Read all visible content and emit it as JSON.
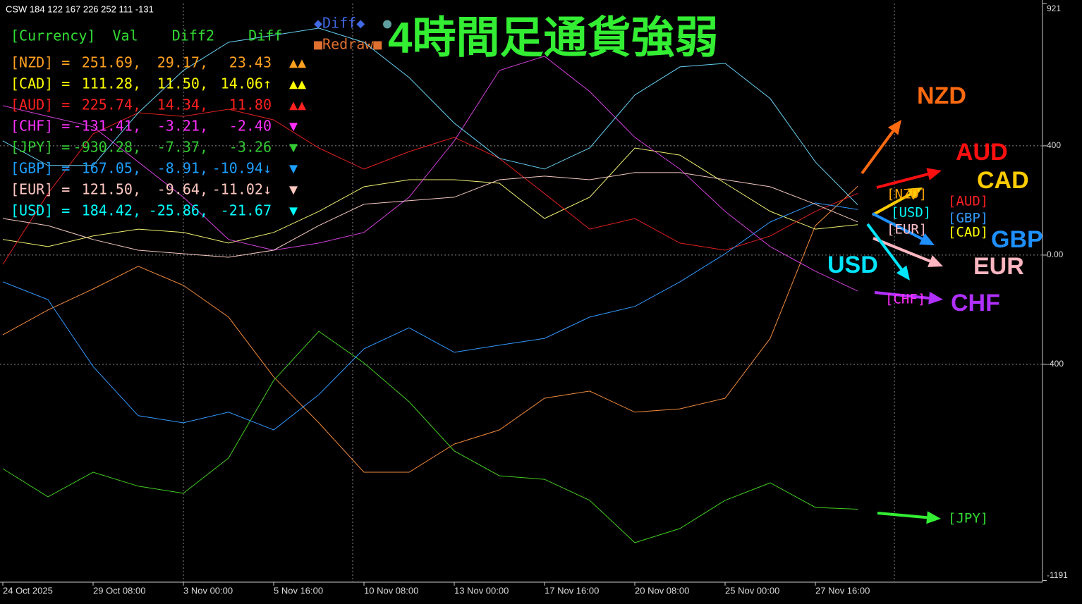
{
  "chart_data": {
    "type": "line",
    "indicator_name": "CSW 184 122 167 226 252 111 -131",
    "title": "4時間足通貨強弱",
    "buttons": {
      "diff": "◆Diff◆",
      "dot": "●",
      "redraw": "■Redraw■"
    },
    "x": [
      0,
      8,
      16,
      24,
      32,
      40,
      48,
      56,
      64,
      72,
      80,
      88,
      96,
      104,
      112,
      120,
      128,
      136,
      144,
      151.5
    ],
    "xlim": [
      0,
      184
    ],
    "xticks": [
      {
        "value": 0,
        "label": "24 Oct 2025"
      },
      {
        "value": 16,
        "label": "29 Oct 08:00"
      },
      {
        "value": 32,
        "label": "3 Nov 00:00"
      },
      {
        "value": 48,
        "label": "5 Nov 16:00"
      },
      {
        "value": 64,
        "label": "10 Nov 08:00"
      },
      {
        "value": 80,
        "label": "13 Nov 00:00"
      },
      {
        "value": 96,
        "label": "17 Nov 16:00"
      },
      {
        "value": 112,
        "label": "20 Nov 08:00"
      },
      {
        "value": 128,
        "label": "25 Nov 00:00"
      },
      {
        "value": 144,
        "label": "27 Nov 16:00"
      }
    ],
    "ylim": [
      -1191,
      921
    ],
    "yticks": [
      921,
      400,
      {
        "value": 0,
        "label": "0.00"
      },
      -400,
      -1191
    ],
    "grid_values": [
      400,
      0,
      -400
    ],
    "series": [
      {
        "name": "NZD",
        "color": "#f08a3c",
        "values": [
          -292,
          -201,
          -124,
          -41,
          -111,
          -227,
          -446,
          -614,
          -795,
          -795,
          -692,
          -640,
          -524,
          -498,
          -575,
          -563,
          -524,
          -305,
          108,
          251.69
        ]
      },
      {
        "name": "CAD",
        "color": "#f0f070",
        "values": [
          57,
          31,
          70,
          95,
          83,
          44,
          83,
          160,
          250,
          276,
          276,
          263,
          134,
          212,
          392,
          366,
          263,
          160,
          95,
          111.28
        ]
      },
      {
        "name": "AUD",
        "color": "#e02020",
        "values": [
          -34,
          225,
          444,
          521,
          508,
          534,
          495,
          392,
          315,
          379,
          431,
          354,
          225,
          95,
          134,
          44,
          18,
          70,
          160,
          225.74
        ]
      },
      {
        "name": "CHF",
        "color": "#d040d8",
        "values": [
          547,
          508,
          470,
          341,
          212,
          57,
          18,
          44,
          83,
          212,
          418,
          676,
          728,
          599,
          431,
          315,
          160,
          31,
          -59,
          -131.41
        ]
      },
      {
        "name": "JPY",
        "color": "#44cc22",
        "values": [
          -782,
          -885,
          -795,
          -846,
          -872,
          -743,
          -459,
          -279,
          -395,
          -537,
          -717,
          -808,
          -821,
          -898,
          -1053,
          -1001,
          -898,
          -834,
          -924,
          -930.28
        ]
      },
      {
        "name": "GBP",
        "color": "#3399ff",
        "values": [
          -98,
          -163,
          -408,
          -588,
          -614,
          -575,
          -640,
          -511,
          -343,
          -266,
          -356,
          -330,
          -305,
          -227,
          -188,
          -98,
          5,
          121,
          191,
          167.05
        ]
      },
      {
        "name": "EUR",
        "color": "#f4c8c0",
        "values": [
          134,
          108,
          57,
          18,
          5,
          -8,
          18,
          108,
          186,
          199,
          212,
          276,
          289,
          276,
          302,
          302,
          276,
          250,
          186,
          121.5
        ]
      },
      {
        "name": "USD",
        "color": "#66d0f0",
        "values": [
          418,
          328,
          328,
          521,
          676,
          779,
          805,
          831,
          779,
          650,
          483,
          354,
          315,
          392,
          586,
          689,
          702,
          573,
          341,
          184.42
        ]
      }
    ],
    "panel": {
      "header": "[Currency]  Val    Diff2    Diff",
      "header_color": "#33dd33",
      "rows": [
        {
          "color": "#ffa020",
          "cells": [
            "[NZD] =",
            "251.69,",
            "29.17,",
            "23.43",
            "▲▲"
          ]
        },
        {
          "color": "#ffff00",
          "cells": [
            "[CAD] =",
            "111.28,",
            "11.50,",
            "14.06↑",
            "▲▲"
          ]
        },
        {
          "color": "#ff2020",
          "cells": [
            "[AUD] =",
            "225.74,",
            "14.34,",
            "11.80",
            "▲▲"
          ]
        },
        {
          "color": "#ff30ff",
          "cells": [
            "[CHF] =",
            "-131.41,",
            "-3.21,",
            "-2.40",
            "▼"
          ]
        },
        {
          "color": "#33cc33",
          "cells": [
            "[JPY] =",
            "-930.28,",
            "-7.37,",
            "-3.26",
            "▼"
          ]
        },
        {
          "color": "#1ea0ff",
          "cells": [
            "[GBP] =",
            "167.05,",
            "-8.91,",
            "-10.94↓",
            "▼"
          ]
        },
        {
          "color": "#ffc8c0",
          "cells": [
            "[EUR] =",
            "121.50,",
            "-9.64,",
            "-11.02↓",
            "▼"
          ]
        },
        {
          "color": "#00ffff",
          "cells": [
            "[USD] =",
            "184.42,",
            "-25.86,",
            "-21.67",
            "▼"
          ]
        }
      ]
    },
    "big_labels": [
      {
        "text": "NZD",
        "color": "#ff6a10"
      },
      {
        "text": "AUD",
        "color": "#ff1010"
      },
      {
        "text": "CAD",
        "color": "#ffcc00"
      },
      {
        "text": "GBP",
        "color": "#1e90ff"
      },
      {
        "text": "EUR",
        "color": "#ffb6c1"
      },
      {
        "text": "USD",
        "color": "#00e5ff"
      },
      {
        "text": "CHF",
        "color": "#b030ff"
      }
    ],
    "small_labels": [
      {
        "text": "[NZD]",
        "color": "#ffa500"
      },
      {
        "text": "[USD]",
        "color": "#00ffff"
      },
      {
        "text": "[EUR]",
        "color": "#ffc0cb"
      },
      {
        "text": "[AUD]",
        "color": "#ff2020"
      },
      {
        "text": "[GBP]",
        "color": "#3399ff"
      },
      {
        "text": "[CAD]",
        "color": "#ffff00"
      },
      {
        "text": "[CHF]",
        "color": "#ff30ff"
      },
      {
        "text": "[JPY]",
        "color": "#33dd33"
      }
    ]
  }
}
